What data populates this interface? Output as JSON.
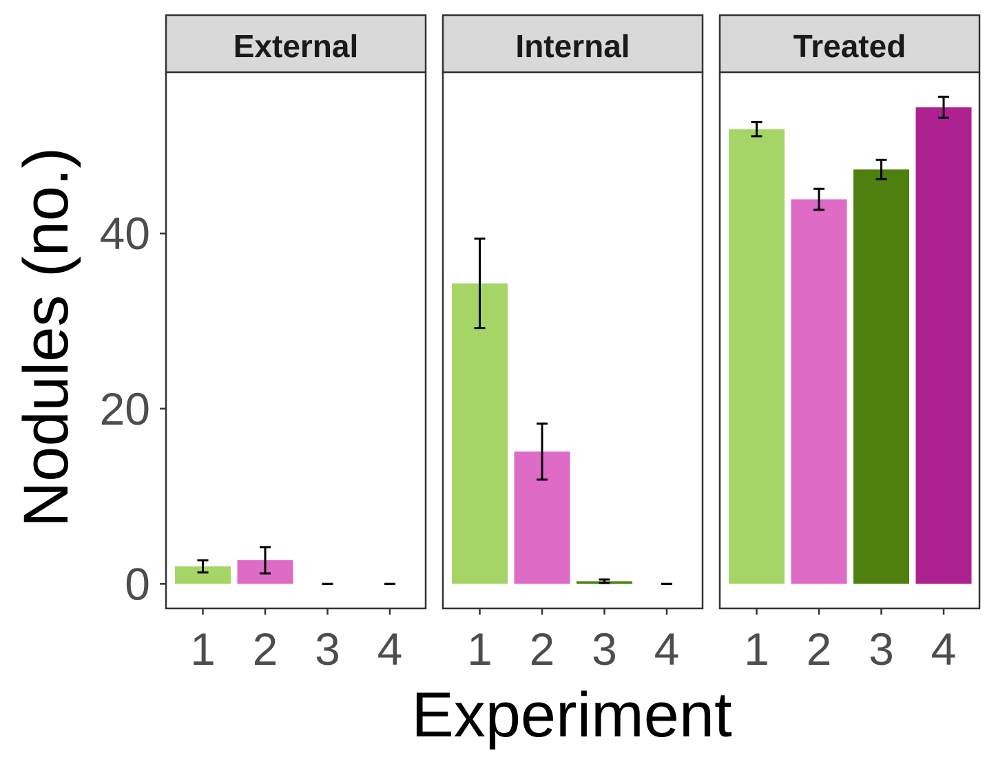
{
  "chart_data": {
    "type": "bar",
    "xlabel": "Experiment",
    "ylabel": "Nodules (no.)",
    "ylim": [
      -2.8,
      58.4
    ],
    "yticks": [
      0,
      20,
      40
    ],
    "categories": [
      "1",
      "2",
      "3",
      "4"
    ],
    "error_bars": "mean ± error",
    "panels": [
      {
        "name": "External",
        "values": [
          2.0,
          2.7,
          0.0,
          0.0
        ],
        "errors": [
          0.7,
          1.5,
          0.0,
          0.0
        ]
      },
      {
        "name": "Internal",
        "values": [
          34.3,
          15.1,
          0.3,
          0.0
        ],
        "errors": [
          5.1,
          3.2,
          0.2,
          0.0
        ]
      },
      {
        "name": "Treated",
        "values": [
          51.9,
          43.9,
          47.3,
          54.4
        ],
        "errors": [
          0.8,
          1.2,
          1.1,
          1.2
        ]
      }
    ],
    "colors": [
      "#a6d567",
      "#de6bc5",
      "#4f7f0f",
      "#ae2190"
    ],
    "grid": false,
    "legend": "none"
  }
}
